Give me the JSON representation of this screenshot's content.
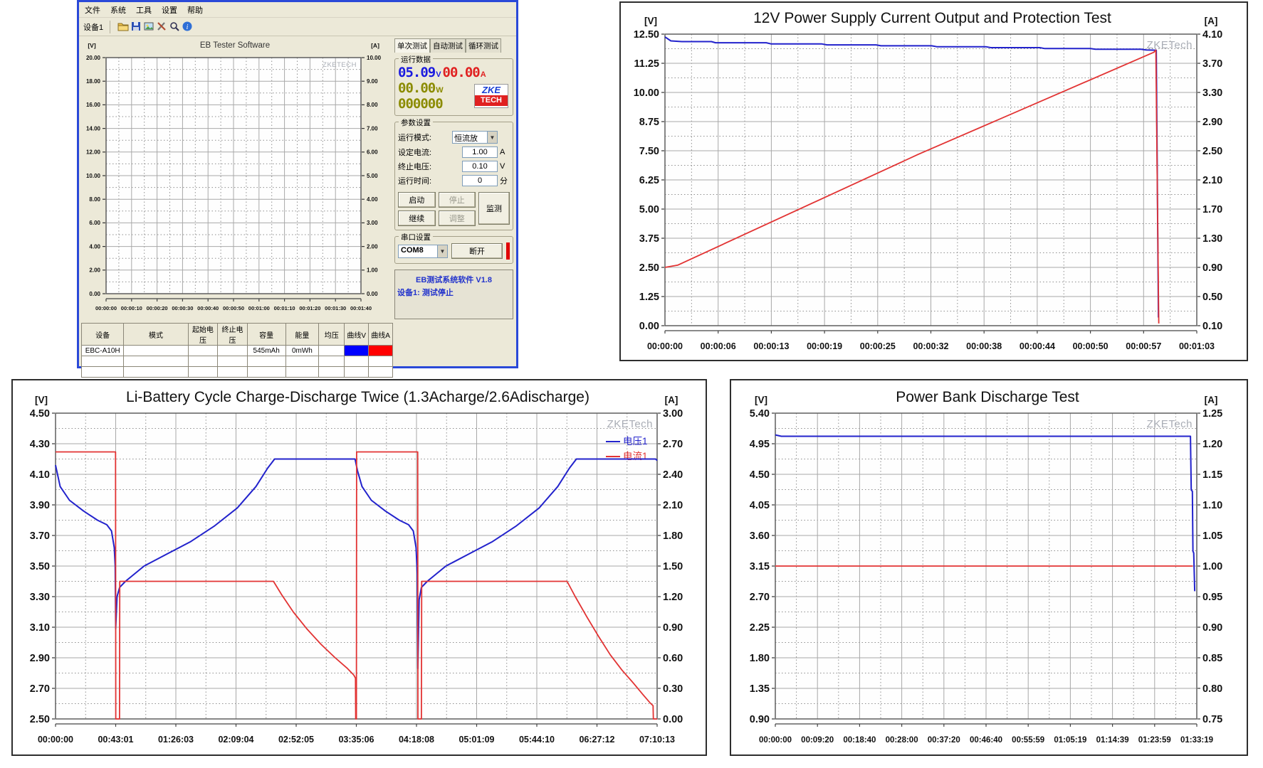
{
  "colors": {
    "voltage_blue": "#2222cc",
    "current_red": "#e23333",
    "grid_major": "#a8a8a8",
    "grid_minor": "#8f8f8f",
    "watermark_gray": "#a9adb5",
    "window_border_blue": "#2a49d8",
    "window_bg": "#ece9d8",
    "curve_v_cell": "#0000ff",
    "curve_a_cell": "#ff0000"
  },
  "tester": {
    "menu": [
      "文件",
      "系统",
      "工具",
      "设置",
      "帮助"
    ],
    "device_label": "设备1",
    "toolbar_icons": [
      "open-folder",
      "save",
      "export-image",
      "tools",
      "zoom",
      "about"
    ],
    "tabs": [
      "单次测试",
      "自动测试",
      "循环测试"
    ],
    "run_data": {
      "group_label": "运行数据",
      "voltage": "05.09",
      "voltage_unit": "V",
      "current": "00.00",
      "current_unit": "A",
      "power": "00.00",
      "power_unit": "W",
      "counter": "000000",
      "logo_top": "ZKE",
      "logo_bottom": "TECH"
    },
    "params": {
      "group_label": "参数设置",
      "rows": [
        {
          "label": "运行模式:",
          "value": "恒流放",
          "unit": "",
          "control": "select"
        },
        {
          "label": "设定电流:",
          "value": "1.00",
          "unit": "A",
          "control": "input"
        },
        {
          "label": "终止电压:",
          "value": "0.10",
          "unit": "V",
          "control": "input"
        },
        {
          "label": "运行时间:",
          "value": "0",
          "unit": "分",
          "control": "input"
        }
      ],
      "buttons": {
        "start": "启动",
        "stop": "停止",
        "resume": "继续",
        "adjust": "调整",
        "monitor": "监测"
      }
    },
    "serial": {
      "group_label": "串口设置",
      "port": "COM8",
      "disconnect": "断开"
    },
    "status": {
      "line1": "EB测试系统软件 V1.8",
      "line2": "设备1: 测试停止"
    },
    "table": {
      "headers": [
        "设备",
        "模式",
        "起始电压",
        "终止电压",
        "容量",
        "能量",
        "均压",
        "曲线V",
        "曲线A"
      ],
      "rows": [
        {
          "device": "EBC-A10H",
          "mode": "",
          "start_v": "",
          "end_v": "",
          "capacity": "545mAh",
          "energy": "0mWh",
          "avg_v": "",
          "curve_v": "#0000ff",
          "curve_a": "#ff0000"
        }
      ]
    }
  },
  "chart_data": [
    {
      "id": "tester-mini-chart",
      "type": "line",
      "title": "EB Tester Software",
      "left_unit": "[V]",
      "right_unit": "[A]",
      "left_range": [
        0,
        20
      ],
      "right_range": [
        0,
        10
      ],
      "left_ticks": [
        "20.00",
        "18.00",
        "16.00",
        "14.00",
        "12.00",
        "10.00",
        "8.00",
        "6.00",
        "4.00",
        "2.00",
        "0.00"
      ],
      "right_ticks": [
        "10.00",
        "9.00",
        "8.00",
        "7.00",
        "6.00",
        "5.00",
        "4.00",
        "3.00",
        "2.00",
        "1.00",
        "0.00"
      ],
      "x_ticks": [
        "00:00:00",
        "00:00:10",
        "00:00:20",
        "00:00:30",
        "00:00:40",
        "00:00:50",
        "00:01:00",
        "00:01:10",
        "00:01:20",
        "00:01:30",
        "00:01:40"
      ],
      "duration_s": 100,
      "watermark": "ZKETECH",
      "grid": "major-solid minor-dotted",
      "series": []
    },
    {
      "id": "psu-test-chart",
      "type": "line",
      "title": "12V Power Supply Current Output and Protection Test",
      "left_unit": "[V]",
      "right_unit": "[A]",
      "left_range": [
        0,
        12.5
      ],
      "right_range": [
        0.1,
        4.1
      ],
      "left_ticks": [
        "12.50",
        "11.25",
        "10.00",
        "8.75",
        "7.50",
        "6.25",
        "5.00",
        "3.75",
        "2.50",
        "1.25",
        "0.00"
      ],
      "right_ticks": [
        "4.10",
        "3.70",
        "3.30",
        "2.90",
        "2.50",
        "2.10",
        "1.70",
        "1.30",
        "0.90",
        "0.50",
        "0.10"
      ],
      "x_ticks": [
        "00:00:00",
        "00:00:06",
        "00:00:13",
        "00:00:19",
        "00:00:25",
        "00:00:32",
        "00:00:38",
        "00:00:44",
        "00:00:50",
        "00:00:57",
        "00:01:03"
      ],
      "duration_s": 63,
      "watermark": "ZKETech",
      "grid": "major-solid minor-dotted",
      "series": [
        {
          "name": "voltage",
          "axis": "left",
          "color": "#2222cc",
          "points": [
            [
              0,
              12.38
            ],
            [
              0.7,
              12.21
            ],
            [
              2,
              12.18
            ],
            [
              5.5,
              12.18
            ],
            [
              6,
              12.13
            ],
            [
              12,
              12.13
            ],
            [
              12.6,
              12.08
            ],
            [
              18.6,
              12.08
            ],
            [
              19.2,
              12.04
            ],
            [
              25,
              12.04
            ],
            [
              25.6,
              12.0
            ],
            [
              31.6,
              12.0
            ],
            [
              32.2,
              11.96
            ],
            [
              38,
              11.96
            ],
            [
              38.6,
              11.92
            ],
            [
              44.4,
              11.92
            ],
            [
              45,
              11.88
            ],
            [
              50.4,
              11.88
            ],
            [
              51,
              11.85
            ],
            [
              56.4,
              11.85
            ],
            [
              57,
              11.82
            ],
            [
              58.2,
              11.81
            ],
            [
              58.45,
              0.35
            ]
          ]
        },
        {
          "name": "current",
          "axis": "right",
          "color": "#e23333",
          "points": [
            [
              0,
              0.9
            ],
            [
              1.5,
              0.93
            ],
            [
              30,
              2.45
            ],
            [
              57.9,
              3.85
            ],
            [
              58.15,
              3.88
            ],
            [
              58.5,
              0.13
            ]
          ]
        }
      ]
    },
    {
      "id": "li-battery-cycle-chart",
      "type": "line",
      "title": "Li-Battery Cycle Charge-Discharge Twice (1.3Acharge/2.6Adischarge)",
      "left_unit": "[V]",
      "right_unit": "[A]",
      "left_range": [
        2.5,
        4.5
      ],
      "right_range": [
        0.0,
        3.0
      ],
      "left_ticks": [
        "4.50",
        "4.30",
        "4.10",
        "3.90",
        "3.70",
        "3.50",
        "3.30",
        "3.10",
        "2.90",
        "2.70",
        "2.50"
      ],
      "right_ticks": [
        "3.00",
        "2.70",
        "2.40",
        "2.10",
        "1.80",
        "1.50",
        "1.20",
        "0.90",
        "0.60",
        "0.30",
        "0.00"
      ],
      "x_ticks": [
        "00:00:00",
        "00:43:01",
        "01:26:03",
        "02:09:04",
        "02:52:05",
        "03:35:06",
        "04:18:08",
        "05:01:09",
        "05:44:10",
        "06:27:12",
        "07:10:13"
      ],
      "duration_s": 25813,
      "watermark": "ZKETech",
      "grid": "major-solid minor-dotted",
      "legend": [
        {
          "label": "电压1",
          "color": "#2222cc"
        },
        {
          "label": "电流1",
          "color": "#e23333"
        }
      ],
      "series": [
        {
          "name": "voltage-1",
          "axis": "left",
          "color": "#2222cc",
          "points": [
            [
              0,
              4.16
            ],
            [
              200,
              4.02
            ],
            [
              600,
              3.93
            ],
            [
              1200,
              3.86
            ],
            [
              1800,
              3.8
            ],
            [
              2200,
              3.77
            ],
            [
              2400,
              3.73
            ],
            [
              2520,
              3.62
            ],
            [
              2560,
              3.5
            ],
            [
              2581,
              3.09
            ],
            [
              2640,
              3.3
            ],
            [
              2750,
              3.36
            ],
            [
              3000,
              3.4
            ],
            [
              3800,
              3.5
            ],
            [
              4800,
              3.58
            ],
            [
              5800,
              3.66
            ],
            [
              6800,
              3.76
            ],
            [
              7800,
              3.88
            ],
            [
              8600,
              4.02
            ],
            [
              9100,
              4.14
            ],
            [
              9400,
              4.2
            ],
            [
              12850,
              4.2
            ],
            [
              12960,
              4.12
            ],
            [
              13150,
              4.02
            ],
            [
              13550,
              3.93
            ],
            [
              14150,
              3.86
            ],
            [
              14750,
              3.8
            ],
            [
              15150,
              3.77
            ],
            [
              15350,
              3.73
            ],
            [
              15470,
              3.62
            ],
            [
              15520,
              3.45
            ],
            [
              15545,
              2.83
            ],
            [
              15600,
              3.28
            ],
            [
              15700,
              3.36
            ],
            [
              15950,
              3.4
            ],
            [
              16750,
              3.5
            ],
            [
              17750,
              3.58
            ],
            [
              18750,
              3.66
            ],
            [
              19750,
              3.76
            ],
            [
              20750,
              3.88
            ],
            [
              21550,
              4.02
            ],
            [
              22050,
              4.14
            ],
            [
              22350,
              4.2
            ],
            [
              25750,
              4.2
            ],
            [
              25813,
              4.19
            ]
          ]
        },
        {
          "name": "current-1",
          "axis": "right",
          "color": "#e23333",
          "points": [
            [
              0,
              2.62
            ],
            [
              2575,
              2.62
            ],
            [
              2585,
              0.0
            ],
            [
              2745,
              0.0
            ],
            [
              2755,
              1.35
            ],
            [
              9350,
              1.35
            ],
            [
              9700,
              1.22
            ],
            [
              10200,
              1.05
            ],
            [
              10800,
              0.88
            ],
            [
              11400,
              0.73
            ],
            [
              12000,
              0.6
            ],
            [
              12500,
              0.5
            ],
            [
              12800,
              0.43
            ],
            [
              12870,
              0.4
            ],
            [
              12880,
              0.0
            ],
            [
              12910,
              0.0
            ],
            [
              12920,
              2.62
            ],
            [
              15540,
              2.62
            ],
            [
              15550,
              0.0
            ],
            [
              15700,
              0.0
            ],
            [
              15710,
              1.35
            ],
            [
              21950,
              1.35
            ],
            [
              22300,
              1.2
            ],
            [
              22800,
              1.0
            ],
            [
              23300,
              0.81
            ],
            [
              23800,
              0.63
            ],
            [
              24300,
              0.48
            ],
            [
              24800,
              0.35
            ],
            [
              25200,
              0.24
            ],
            [
              25500,
              0.16
            ],
            [
              25640,
              0.13
            ],
            [
              25650,
              0.0
            ],
            [
              25813,
              0.0
            ]
          ]
        }
      ]
    },
    {
      "id": "power-bank-chart",
      "type": "line",
      "title": "Power Bank Discharge Test",
      "left_unit": "[V]",
      "right_unit": "[A]",
      "left_range": [
        0.9,
        5.4
      ],
      "right_range": [
        0.75,
        1.25
      ],
      "left_ticks": [
        "5.40",
        "4.95",
        "4.50",
        "4.05",
        "3.60",
        "3.15",
        "2.70",
        "2.25",
        "1.80",
        "1.35",
        "0.90"
      ],
      "right_ticks": [
        "1.25",
        "1.20",
        "1.15",
        "1.10",
        "1.05",
        "1.00",
        "0.95",
        "0.90",
        "0.85",
        "0.80",
        "0.75"
      ],
      "x_ticks": [
        "00:00:00",
        "00:09:20",
        "00:18:40",
        "00:28:00",
        "00:37:20",
        "00:46:40",
        "00:55:59",
        "01:05:19",
        "01:14:39",
        "01:23:59",
        "01:33:19"
      ],
      "duration_s": 5599,
      "watermark": "ZKETech",
      "grid": "major-solid minor-dotted",
      "series": [
        {
          "name": "voltage",
          "axis": "left",
          "color": "#2222cc",
          "points": [
            [
              0,
              5.08
            ],
            [
              80,
              5.06
            ],
            [
              5515,
              5.06
            ],
            [
              5525,
              4.27
            ],
            [
              5540,
              4.25
            ],
            [
              5548,
              3.37
            ],
            [
              5558,
              3.34
            ],
            [
              5572,
              2.78
            ]
          ]
        },
        {
          "name": "current",
          "axis": "right",
          "color": "#e23333",
          "points": [
            [
              0,
              1.0
            ],
            [
              5545,
              1.0
            ]
          ]
        }
      ]
    }
  ]
}
